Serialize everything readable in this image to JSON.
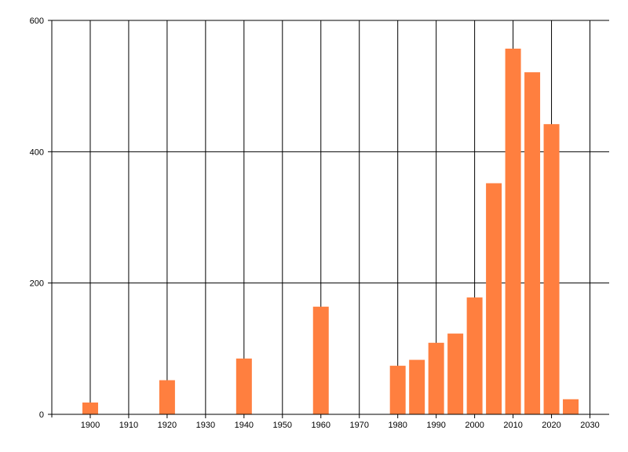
{
  "chart_data": {
    "type": "bar",
    "x": [
      1900,
      1920,
      1940,
      1960,
      1980,
      1985,
      1990,
      1995,
      2000,
      2005,
      2010,
      2015,
      2020,
      2025
    ],
    "values": [
      18,
      52,
      85,
      164,
      74,
      83,
      109,
      123,
      178,
      352,
      557,
      521,
      442,
      23
    ],
    "xlim": [
      1890,
      2035
    ],
    "ylim": [
      0,
      600
    ],
    "xticks": [
      1900,
      1910,
      1920,
      1930,
      1940,
      1950,
      1960,
      1970,
      1980,
      1990,
      2000,
      2010,
      2020,
      2030
    ],
    "yticks": [
      0,
      200,
      400,
      600
    ],
    "grid": true,
    "bar_color": "#ff7f3f",
    "title": "",
    "xlabel": "",
    "ylabel": ""
  }
}
